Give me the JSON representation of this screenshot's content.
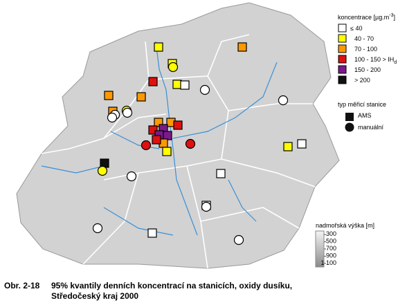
{
  "legend": {
    "concentration_title": {
      "text": "koncentrace [µg.m",
      "superscript": "-3",
      "closing": "]"
    },
    "classes": [
      {
        "text": "≤ 40",
        "color": "#ffffff"
      },
      {
        "text": "40 - 70",
        "color": "#ffff00"
      },
      {
        "text": "70 - 100",
        "color": "#ff9900"
      },
      {
        "text": "100 - 150 > IH",
        "subscript": "d",
        "color": "#dd1111"
      },
      {
        "text": "150 - 200",
        "color": "#7a1a8a"
      },
      {
        "text": "> 200",
        "color": "#111111"
      }
    ],
    "station_type_title": "typ měřicí stanice",
    "station_types": [
      "AMS",
      "manuální"
    ]
  },
  "elevation": {
    "title": "nadmořská výška [m]",
    "ticks": [
      300,
      500,
      700,
      900,
      {
        "value": 1100,
        "label": "1 100"
      }
    ],
    "lim": [
      200,
      1200
    ]
  },
  "caption": {
    "number": "Obr. 2-18",
    "line1": "95% kvantily denních koncentrací na stanicích, oxidy dusíku,",
    "line2": "Středočeský kraj 2000"
  }
}
